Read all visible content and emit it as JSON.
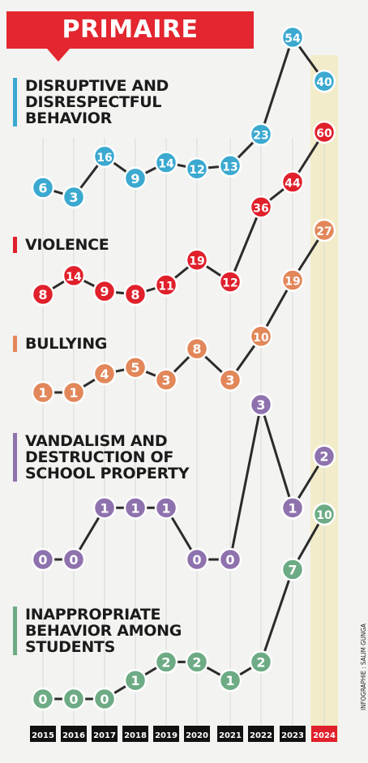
{
  "title": "PRIMAIRE",
  "credit": "INFOGRAPHIE : SALIM GUNGA",
  "chart_data": {
    "type": "line",
    "title": "PRIMAIRE",
    "x": [
      "2015",
      "2016",
      "2017",
      "2018",
      "2019",
      "2020",
      "2021",
      "2022",
      "2023",
      "2024"
    ],
    "highlight_x": "2024",
    "grid": true,
    "series": [
      {
        "name": "DISRUPTIVE AND\nDISRESPECTFUL\nBEHAVIOR",
        "color": "#3ba9d0",
        "values": [
          6,
          3,
          16,
          9,
          14,
          12,
          13,
          23,
          54,
          40
        ]
      },
      {
        "name": "VIOLENCE",
        "color": "#e0202b",
        "values": [
          8,
          14,
          9,
          8,
          11,
          19,
          12,
          36,
          44,
          60
        ]
      },
      {
        "name": "BULLYING",
        "color": "#e2875a",
        "values": [
          1,
          1,
          4,
          5,
          3,
          8,
          3,
          10,
          19,
          27
        ]
      },
      {
        "name": "VANDALISM AND\nDESTRUCTION OF\nSCHOOL PROPERTY",
        "color": "#8e72ad",
        "values": [
          0,
          0,
          1,
          1,
          1,
          0,
          0,
          3,
          1,
          2
        ]
      },
      {
        "name": "INAPPROPRIATE\nBEHAVIOR AMONG\nSTUDENTS",
        "color": "#6dab85",
        "values": [
          0,
          0,
          0,
          1,
          2,
          2,
          1,
          2,
          7,
          10
        ]
      }
    ]
  }
}
